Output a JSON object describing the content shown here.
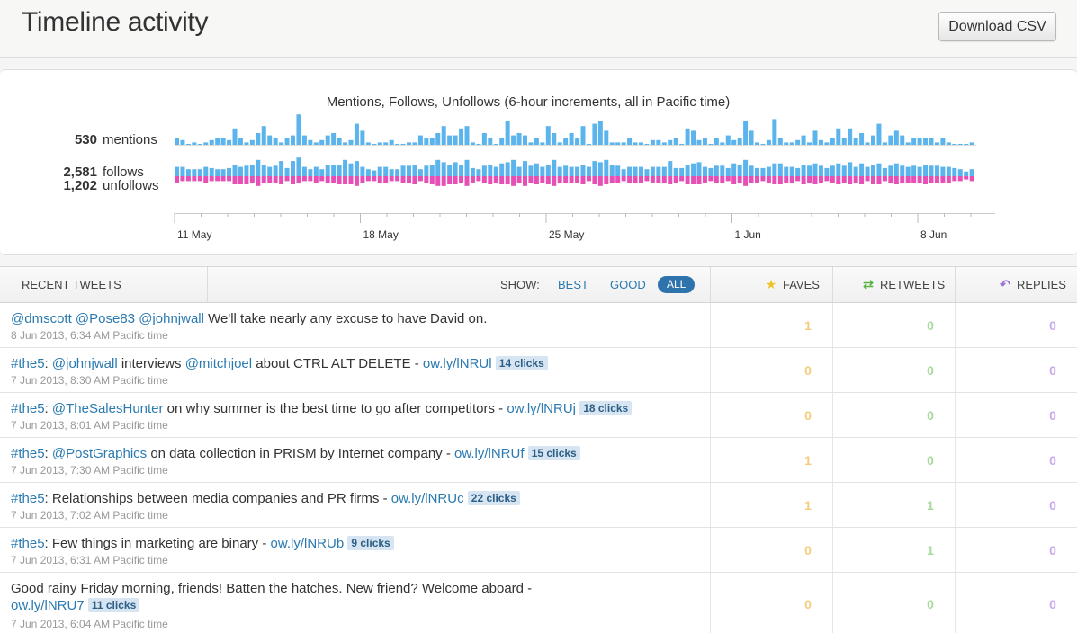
{
  "header": {
    "title": "Timeline activity",
    "download_label": "Download CSV"
  },
  "chart": {
    "title": "Mentions, Follows, Unfollows (6-hour increments, all in Pacific time)",
    "mentions_count": "530",
    "mentions_label": "mentions",
    "follows_count": "2,581",
    "follows_label": "follows",
    "unfollows_count": "1,202",
    "unfollows_label": "unfollows"
  },
  "chart_data": {
    "type": "bar",
    "title": "Mentions, Follows, Unfollows (6-hour increments, all in Pacific time)",
    "x_tick_labels": [
      "11 May",
      "18 May",
      "25 May",
      "1 Jun",
      "8 Jun"
    ],
    "series": [
      {
        "name": "mentions",
        "values": [
          3,
          2,
          0,
          1,
          0,
          1,
          2,
          3,
          3,
          2,
          7,
          3,
          1,
          2,
          5,
          8,
          4,
          3,
          1,
          3,
          4,
          13,
          4,
          2,
          1,
          2,
          4,
          5,
          3,
          1,
          2,
          9,
          6,
          1,
          0,
          1,
          1,
          2,
          0,
          0,
          1,
          1,
          4,
          3,
          3,
          5,
          8,
          4,
          4,
          7,
          8,
          1,
          0,
          5,
          3,
          0,
          3,
          10,
          4,
          5,
          4,
          1,
          3,
          1,
          8,
          5,
          1,
          3,
          5,
          3,
          8,
          0,
          9,
          10,
          6,
          1,
          1,
          1,
          3,
          1,
          1,
          0,
          2,
          2,
          1,
          2,
          3,
          0,
          7,
          6,
          2,
          3,
          0,
          3,
          1,
          4,
          2,
          3,
          10,
          6,
          1,
          0,
          2,
          11,
          3,
          1,
          1,
          2,
          4,
          1,
          6,
          2,
          1,
          3,
          7,
          3,
          7,
          3,
          5,
          1,
          4,
          9,
          1,
          4,
          6,
          4,
          1,
          3,
          3,
          3,
          3,
          1,
          3,
          1,
          0,
          0,
          0,
          1
        ]
      },
      {
        "name": "follows",
        "values": [
          8,
          8,
          6,
          6,
          6,
          8,
          7,
          6,
          6,
          7,
          10,
          8,
          9,
          10,
          14,
          10,
          8,
          9,
          13,
          7,
          13,
          16,
          8,
          6,
          8,
          6,
          10,
          10,
          10,
          14,
          11,
          13,
          8,
          6,
          5,
          8,
          8,
          6,
          6,
          9,
          9,
          10,
          6,
          9,
          10,
          14,
          12,
          10,
          12,
          10,
          14,
          7,
          6,
          9,
          10,
          8,
          11,
          12,
          14,
          8,
          13,
          9,
          11,
          8,
          10,
          14,
          8,
          9,
          8,
          8,
          10,
          8,
          13,
          12,
          14,
          10,
          9,
          6,
          8,
          8,
          8,
          6,
          8,
          8,
          8,
          13,
          7,
          7,
          10,
          11,
          12,
          8,
          7,
          9,
          9,
          7,
          11,
          10,
          14,
          9,
          7,
          7,
          8,
          11,
          11,
          8,
          8,
          7,
          10,
          9,
          11,
          9,
          7,
          9,
          11,
          9,
          12,
          8,
          11,
          8,
          10,
          11,
          7,
          9,
          11,
          9,
          8,
          9,
          8,
          10,
          9,
          9,
          8,
          8,
          7,
          6,
          4,
          6
        ]
      },
      {
        "name": "unfollows",
        "values": [
          4,
          3,
          3,
          3,
          3,
          4,
          3,
          3,
          3,
          3,
          5,
          5,
          5,
          4,
          6,
          4,
          4,
          4,
          5,
          3,
          5,
          4,
          3,
          3,
          4,
          3,
          4,
          4,
          5,
          5,
          5,
          6,
          4,
          3,
          3,
          4,
          4,
          3,
          3,
          4,
          4,
          5,
          3,
          4,
          5,
          6,
          6,
          5,
          5,
          4,
          6,
          4,
          3,
          4,
          5,
          4,
          5,
          5,
          6,
          4,
          6,
          4,
          5,
          4,
          5,
          6,
          4,
          4,
          4,
          4,
          5,
          3,
          5,
          6,
          5,
          4,
          4,
          3,
          4,
          4,
          4,
          3,
          4,
          4,
          4,
          5,
          4,
          3,
          5,
          5,
          5,
          4,
          3,
          4,
          4,
          3,
          5,
          4,
          6,
          4,
          4,
          3,
          4,
          5,
          5,
          4,
          4,
          3,
          5,
          4,
          5,
          4,
          3,
          4,
          5,
          4,
          5,
          4,
          5,
          3,
          5,
          5,
          3,
          4,
          5,
          4,
          4,
          4,
          4,
          5,
          4,
          4,
          4,
          4,
          3,
          3,
          2,
          3
        ]
      }
    ]
  },
  "tweets_header": {
    "recent": "RECENT TWEETS",
    "show": "SHOW:",
    "best": "BEST",
    "good": "GOOD",
    "all": "ALL",
    "faves": "FAVES",
    "retweets": "RETWEETS",
    "replies": "REPLIES"
  },
  "tweets": [
    {
      "segments": [
        [
          "l",
          "@dmscott"
        ],
        [
          "t",
          " "
        ],
        [
          "l",
          "@Pose83"
        ],
        [
          "t",
          " "
        ],
        [
          "l",
          "@johnjwall"
        ],
        [
          "t",
          " We'll take nearly any excuse to have David on."
        ]
      ],
      "date": "8 Jun 2013, 6:34 AM Pacific time",
      "faves": "1",
      "retweets": "0",
      "replies": "0"
    },
    {
      "segments": [
        [
          "l",
          "#the5"
        ],
        [
          "t",
          ": "
        ],
        [
          "l",
          "@johnjwall"
        ],
        [
          "t",
          " interviews "
        ],
        [
          "l",
          "@mitchjoel"
        ],
        [
          "t",
          " about CTRL ALT DELETE - "
        ],
        [
          "l",
          "ow.ly/lNRUl"
        ],
        [
          "t",
          " "
        ],
        [
          "c",
          "14 clicks"
        ]
      ],
      "date": "7 Jun 2013, 8:30 AM Pacific time",
      "faves": "0",
      "retweets": "0",
      "replies": "0"
    },
    {
      "segments": [
        [
          "l",
          "#the5"
        ],
        [
          "t",
          ": "
        ],
        [
          "l",
          "@TheSalesHunter"
        ],
        [
          "t",
          " on why summer is the best time to go after competitors - "
        ],
        [
          "l",
          "ow.ly/lNRUj"
        ],
        [
          "t",
          " "
        ],
        [
          "c",
          "18 clicks"
        ]
      ],
      "date": "7 Jun 2013, 8:01 AM Pacific time",
      "faves": "0",
      "retweets": "0",
      "replies": "0"
    },
    {
      "segments": [
        [
          "l",
          "#the5"
        ],
        [
          "t",
          ": "
        ],
        [
          "l",
          "@PostGraphics"
        ],
        [
          "t",
          " on data collection in PRISM by Internet company - "
        ],
        [
          "l",
          "ow.ly/lNRUf"
        ],
        [
          "t",
          " "
        ],
        [
          "c",
          "15 clicks"
        ]
      ],
      "date": "7 Jun 2013, 7:30 AM Pacific time",
      "faves": "1",
      "retweets": "0",
      "replies": "0"
    },
    {
      "segments": [
        [
          "l",
          "#the5"
        ],
        [
          "t",
          ": Relationships between media companies and PR firms - "
        ],
        [
          "l",
          "ow.ly/lNRUc"
        ],
        [
          "t",
          " "
        ],
        [
          "c",
          "22 clicks"
        ]
      ],
      "date": "7 Jun 2013, 7:02 AM Pacific time",
      "faves": "1",
      "retweets": "1",
      "replies": "0"
    },
    {
      "segments": [
        [
          "l",
          "#the5"
        ],
        [
          "t",
          ": Few things in marketing are binary - "
        ],
        [
          "l",
          "ow.ly/lNRUb"
        ],
        [
          "t",
          " "
        ],
        [
          "c",
          "9 clicks"
        ]
      ],
      "date": "7 Jun 2013, 6:31 AM Pacific time",
      "faves": "0",
      "retweets": "1",
      "replies": "0"
    },
    {
      "segments": [
        [
          "t",
          "Good rainy Friday morning, friends! Batten the hatches. New friend? Welcome aboard -"
        ],
        [
          "br",
          ""
        ],
        [
          "l",
          "ow.ly/lNRU7"
        ],
        [
          "t",
          " "
        ],
        [
          "c",
          "11 clicks"
        ]
      ],
      "date": "7 Jun 2013, 6:04 AM Pacific time",
      "faves": "0",
      "retweets": "0",
      "replies": "0"
    }
  ]
}
